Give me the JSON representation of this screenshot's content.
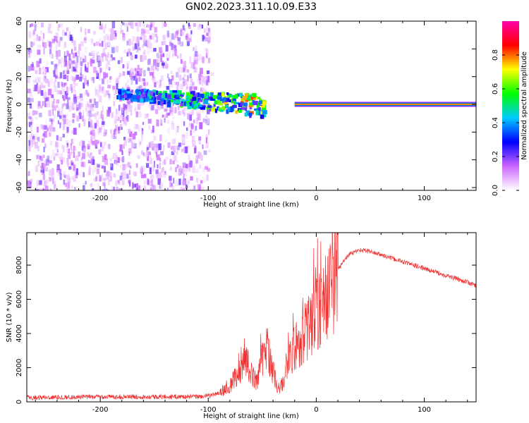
{
  "title": "GN02.2023.311.10.09.E33",
  "chart_data": [
    {
      "type": "heatmap",
      "xlabel": "Height of straight line (km)",
      "ylabel": "Frequency (Hz)",
      "xlim": [
        -268,
        148
      ],
      "ylim": [
        -62,
        60
      ],
      "xticks": [
        -200,
        -100,
        0,
        100
      ],
      "yticks": [
        -60,
        -40,
        -20,
        0,
        20,
        40,
        60
      ],
      "features": {
        "noise_region_x": [
          -268,
          -100
        ],
        "diffuse_band_x": [
          -185,
          -50
        ],
        "diffuse_band_y_center": [
          9,
          0
        ],
        "strong_line_x": [
          -20,
          148
        ],
        "strong_line_y": 0
      },
      "colorbar": {
        "label": "Normalized spectral amplitude",
        "range": [
          0,
          1
        ],
        "ticks": [
          0.0,
          0.2,
          0.4,
          0.6,
          0.8
        ],
        "colormap": [
          "#ffffff",
          "#cc66ff",
          "#0000ff",
          "#00ccff",
          "#00ff00",
          "#ffff00",
          "#ff0000",
          "#ff00aa"
        ]
      }
    },
    {
      "type": "line",
      "xlabel": "Height of straight line (km)",
      "ylabel": "SNR (10 * v/v)",
      "xlim": [
        -268,
        148
      ],
      "ylim": [
        0,
        9900
      ],
      "xticks": [
        -200,
        -100,
        0,
        100
      ],
      "yticks": [
        0,
        2000,
        4000,
        6000,
        8000
      ],
      "series": [
        {
          "color": "#f03030",
          "x": [
            -268,
            -200,
            -150,
            -110,
            -100,
            -90,
            -80,
            -72,
            -65,
            -60,
            -55,
            -50,
            -45,
            -40,
            -35,
            -30,
            -25,
            -20,
            -15,
            -10,
            -5,
            0,
            5,
            10,
            15,
            20,
            25,
            30,
            40,
            50,
            60,
            70,
            80,
            90,
            100,
            110,
            120,
            130,
            140,
            148
          ],
          "y": [
            250,
            300,
            300,
            300,
            350,
            500,
            900,
            1700,
            2500,
            1600,
            1200,
            2500,
            3200,
            1800,
            600,
            1200,
            2500,
            3200,
            3600,
            4100,
            4500,
            5100,
            5500,
            6300,
            7000,
            7700,
            8200,
            8600,
            8900,
            8800,
            8600,
            8400,
            8200,
            8000,
            7800,
            7600,
            7400,
            7200,
            7000,
            6800
          ]
        }
      ]
    }
  ]
}
